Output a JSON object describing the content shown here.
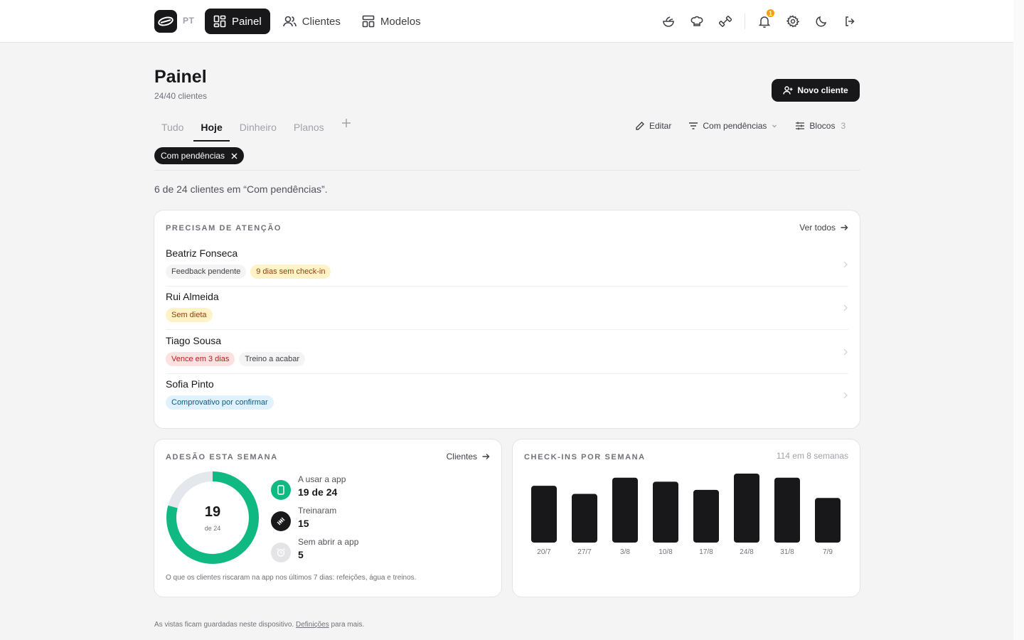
{
  "topbar": {
    "lang": "PT",
    "nav": [
      {
        "label": "Painel",
        "icon": "dashboard-icon",
        "active": true
      },
      {
        "label": "Clientes",
        "icon": "users-icon",
        "active": false
      },
      {
        "label": "Modelos",
        "icon": "templates-icon",
        "active": false
      }
    ],
    "notifications_count": "1"
  },
  "header": {
    "title": "Painel",
    "subtitle": "24/40 clientes",
    "new_client_label": "Novo cliente"
  },
  "tabs": [
    "Tudo",
    "Hoje",
    "Dinheiro",
    "Planos"
  ],
  "active_tab": "Hoje",
  "toolbar": {
    "edit_label": "Editar",
    "filter_label": "Com pendências",
    "blocks_label": "Blocos",
    "blocks_count": "3"
  },
  "filter_chip": {
    "label": "Com pendências"
  },
  "result_text": "6 de 24 clientes em “Com pendências”.",
  "attention": {
    "title": "PRECISAM DE ATENÇÃO",
    "link": "Ver todos",
    "rows": [
      {
        "name": "Beatriz Fonseca",
        "tags": [
          {
            "text": "Feedback pendente",
            "tone": "gray"
          },
          {
            "text": "9 dias sem check-in",
            "tone": "amber"
          }
        ]
      },
      {
        "name": "Rui Almeida",
        "tags": [
          {
            "text": "Sem dieta",
            "tone": "amber"
          }
        ]
      },
      {
        "name": "Tiago Sousa",
        "tags": [
          {
            "text": "Vence em 3 dias",
            "tone": "red"
          },
          {
            "text": "Treino a acabar",
            "tone": "gray"
          }
        ]
      },
      {
        "name": "Sofia Pinto",
        "tags": [
          {
            "text": "Comprovativo por confirmar",
            "tone": "blue"
          }
        ]
      }
    ]
  },
  "adherence": {
    "title": "ADESÃO ESTA SEMANA",
    "link": "Clientes",
    "value": "19",
    "sub": "de 24",
    "fraction": 0.7917,
    "stats": [
      {
        "label": "A usar a app",
        "value": "19 de 24",
        "icon": "phone-icon"
      },
      {
        "label": "Treinaram",
        "value": "15",
        "icon": "dumbbell-icon"
      },
      {
        "label": "Sem abrir a app",
        "value": "5",
        "icon": "alarm-clock-icon"
      }
    ],
    "note": "O que os clientes riscaram na app nos últimos 7 dias: refeições, água e treinos.",
    "colors": {
      "ring": "#10b981",
      "track": "#e4e7eb"
    }
  },
  "checkins": {
    "title": "CHECK-INS POR SEMANA",
    "meta": "114 em 8 semanas"
  },
  "chart_data": {
    "type": "bar",
    "categories": [
      "20/7",
      "27/7",
      "3/8",
      "10/8",
      "17/8",
      "24/8",
      "31/8",
      "7/9"
    ],
    "values": [
      14,
      12,
      16,
      15,
      13,
      17,
      16,
      11
    ],
    "ylim": [
      0,
      17
    ],
    "color": "#18181b"
  },
  "footer": {
    "text_before": "As vistas ficam guardadas neste dispositivo.",
    "link": "Definições",
    "text_after": "para mais."
  }
}
